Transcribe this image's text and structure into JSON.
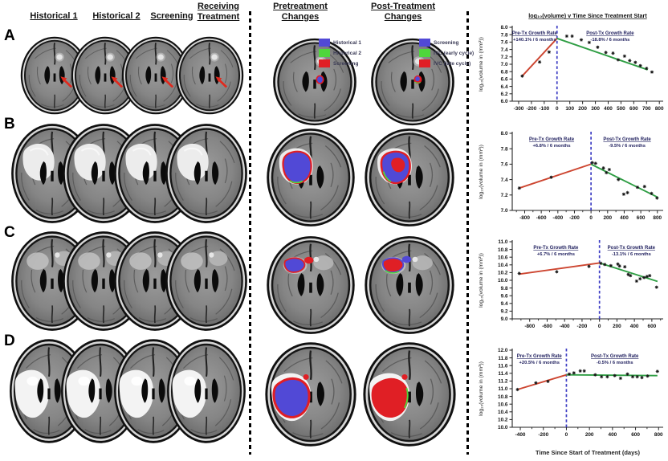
{
  "left_panel": {
    "row_labels": [
      "A",
      "B",
      "C",
      "D"
    ],
    "column_headers": [
      "Historical 1",
      "Historical 2",
      "Screening",
      "Receiving Treatment"
    ]
  },
  "middle_panel": {
    "column_headers": [
      "Pretreatment Changes",
      "Post-Treatment Changes"
    ],
    "legend_pre": [
      {
        "label": "Historical 1",
        "color": "#5149d6"
      },
      {
        "label": "Historical 2",
        "color": "#4fd63c"
      },
      {
        "label": "Screening",
        "color": "#e01f25"
      }
    ],
    "legend_post": [
      {
        "label": "Screening",
        "color": "#5149d6"
      },
      {
        "label": "IVC (early cycle)",
        "color": "#4fd63c"
      },
      {
        "label": "IVC (late cycle)",
        "color": "#e01f25"
      }
    ]
  },
  "colors": {
    "blue": "#5149d6",
    "green": "#4fd63c",
    "red": "#e01f25",
    "pre_line": "#cd4631",
    "post_line": "#2f9e44",
    "vline": "#3d3dc4",
    "annotation": "#1f1f5e",
    "arrow": "#e02a1e"
  },
  "charts": {
    "title": "log₁₀(volume) v Time Since Treatment Start",
    "xlabel": "Time Since Start of Treatment (days)",
    "ylabel": "log₁₀(volume in (mm³))",
    "pre_heading": "Pre-Tx Growth Rate",
    "post_heading": "Post-Tx Growth Rate"
  },
  "chart_data": [
    {
      "panel": "A",
      "type": "scatter",
      "xlim": [
        -350,
        830
      ],
      "ylim": [
        6.0,
        8.0
      ],
      "ystep": 0.2,
      "xticks": [
        -300,
        -200,
        -100,
        0,
        100,
        200,
        300,
        400,
        500,
        600,
        700,
        800
      ],
      "minor_xtick_step": null,
      "pre_rate": "+140.1% / 6 months",
      "post_rate": "-18.8% / 6 months",
      "pre_fit": [
        [
          -272,
          6.68
        ],
        [
          0,
          7.7
        ]
      ],
      "post_fit": [
        [
          0,
          7.7
        ],
        [
          708,
          6.85
        ]
      ],
      "pre_points": [
        [
          -272,
          6.68
        ],
        [
          -136,
          7.06
        ],
        [
          -62,
          7.33
        ]
      ],
      "post_points": [
        [
          76,
          7.76
        ],
        [
          118,
          7.76
        ],
        [
          190,
          7.66
        ],
        [
          252,
          7.59
        ],
        [
          318,
          7.46
        ],
        [
          382,
          7.32
        ],
        [
          438,
          7.3
        ],
        [
          478,
          7.12
        ],
        [
          528,
          7.22
        ],
        [
          568,
          7.1
        ],
        [
          612,
          7.05
        ],
        [
          652,
          6.96
        ],
        [
          700,
          6.89
        ],
        [
          742,
          6.79
        ]
      ]
    },
    {
      "panel": "B",
      "type": "scatter",
      "xlim": [
        -950,
        870
      ],
      "ylim": [
        7.0,
        8.0
      ],
      "ystep": 0.2,
      "xticks": [
        -800,
        -600,
        -400,
        -200,
        0,
        200,
        400,
        600,
        800
      ],
      "minor_xtick_step": 100,
      "pre_rate": "+6.8% / 6 months",
      "post_rate": "-9.5% / 6 months",
      "pre_fit": [
        [
          -865,
          7.29
        ],
        [
          0,
          7.6
        ]
      ],
      "post_fit": [
        [
          0,
          7.6
        ],
        [
          805,
          7.17
        ]
      ],
      "pre_points": [
        [
          -865,
          7.29
        ],
        [
          -480,
          7.43
        ]
      ],
      "post_points": [
        [
          15,
          7.62
        ],
        [
          55,
          7.61
        ],
        [
          150,
          7.55
        ],
        [
          185,
          7.49
        ],
        [
          220,
          7.53
        ],
        [
          330,
          7.4
        ],
        [
          395,
          7.21
        ],
        [
          440,
          7.23
        ],
        [
          560,
          7.3
        ],
        [
          645,
          7.31
        ],
        [
          730,
          7.22
        ],
        [
          795,
          7.16
        ]
      ]
    },
    {
      "panel": "C",
      "type": "scatter",
      "xlim": [
        -1000,
        730
      ],
      "ylim": [
        9.0,
        11.0
      ],
      "ystep": 0.2,
      "xticks": [
        -800,
        -600,
        -400,
        -200,
        0,
        200,
        400,
        600
      ],
      "minor_xtick_step": 100,
      "pre_rate": "+6.7% / 6 months",
      "post_rate": "-13.1% / 6 months",
      "pre_fit": [
        [
          -920,
          10.16
        ],
        [
          0,
          10.45
        ]
      ],
      "post_fit": [
        [
          0,
          10.45
        ],
        [
          665,
          9.97
        ]
      ],
      "pre_points": [
        [
          -920,
          10.18
        ],
        [
          -490,
          10.22
        ],
        [
          -120,
          10.36
        ]
      ],
      "post_points": [
        [
          15,
          10.44
        ],
        [
          60,
          10.41
        ],
        [
          130,
          10.38
        ],
        [
          210,
          10.42
        ],
        [
          230,
          10.37
        ],
        [
          290,
          10.35
        ],
        [
          330,
          10.15
        ],
        [
          355,
          10.12
        ],
        [
          425,
          9.98
        ],
        [
          465,
          10.04
        ],
        [
          510,
          10.07
        ],
        [
          545,
          10.1
        ],
        [
          575,
          10.12
        ],
        [
          655,
          9.82
        ]
      ]
    },
    {
      "panel": "D",
      "type": "scatter",
      "xlim": [
        -470,
        840
      ],
      "ylim": [
        10.0,
        12.0
      ],
      "ystep": 0.2,
      "xticks": [
        -400,
        -200,
        0,
        200,
        400,
        600,
        800
      ],
      "minor_xtick_step": 100,
      "pre_rate": "+20.5% / 6 months",
      "post_rate": "-0.5% / 6 months",
      "pre_fit": [
        [
          -425,
          10.98
        ],
        [
          0,
          11.36
        ]
      ],
      "post_fit": [
        [
          0,
          11.36
        ],
        [
          790,
          11.34
        ]
      ],
      "pre_points": [
        [
          -425,
          10.98
        ],
        [
          -265,
          11.15
        ],
        [
          -160,
          11.19
        ]
      ],
      "post_points": [
        [
          25,
          11.38
        ],
        [
          65,
          11.41
        ],
        [
          120,
          11.46
        ],
        [
          155,
          11.46
        ],
        [
          250,
          11.36
        ],
        [
          305,
          11.31
        ],
        [
          355,
          11.31
        ],
        [
          420,
          11.34
        ],
        [
          470,
          11.27
        ],
        [
          530,
          11.38
        ],
        [
          575,
          11.31
        ],
        [
          615,
          11.31
        ],
        [
          655,
          11.29
        ],
        [
          705,
          11.33
        ],
        [
          790,
          11.45
        ]
      ]
    }
  ]
}
